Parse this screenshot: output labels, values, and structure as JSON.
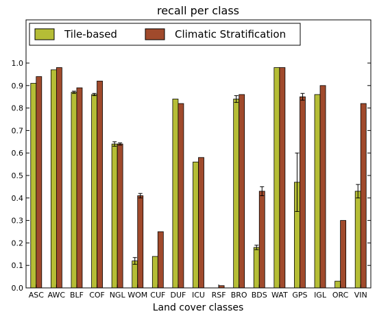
{
  "chart_data": {
    "type": "bar",
    "title": "recall per class",
    "xlabel": "Land cover classes",
    "ylabel": "",
    "ylim": [
      0,
      1.0
    ],
    "yticks": [
      "0.0",
      "0.1",
      "0.2",
      "0.3",
      "0.4",
      "0.5",
      "0.6",
      "0.7",
      "0.8",
      "0.9",
      "1.0"
    ],
    "grid": false,
    "legend_position": "top",
    "categories": [
      "ASC",
      "AWC",
      "BLF",
      "COF",
      "NGL",
      "WOM",
      "CUF",
      "DUF",
      "ICU",
      "RSF",
      "BRO",
      "BDS",
      "WAT",
      "GPS",
      "IGL",
      "ORC",
      "VIN"
    ],
    "series": [
      {
        "name": "Tile-based",
        "color": "#b5bd36",
        "values": [
          0.91,
          0.97,
          0.87,
          0.86,
          0.64,
          0.12,
          0.14,
          0.84,
          0.56,
          0.0,
          0.84,
          0.18,
          0.98,
          0.47,
          0.86,
          0.03,
          0.43
        ],
        "errors": [
          0.0,
          0.0,
          0.005,
          0.005,
          0.01,
          0.015,
          0.0,
          0.0,
          0.0,
          0.0,
          0.015,
          0.01,
          0.0,
          0.13,
          0.0,
          0.0,
          0.03
        ]
      },
      {
        "name": "Climatic Stratification",
        "color": "#a04a2c",
        "values": [
          0.94,
          0.98,
          0.89,
          0.92,
          0.64,
          0.41,
          0.25,
          0.82,
          0.58,
          0.01,
          0.86,
          0.43,
          0.98,
          0.85,
          0.9,
          0.3,
          0.82
        ],
        "errors": [
          0.0,
          0.0,
          0.0,
          0.0,
          0.005,
          0.01,
          0.0,
          0.0,
          0.0,
          0.0,
          0.0,
          0.02,
          0.0,
          0.015,
          0.0,
          0.0,
          0.0
        ]
      }
    ]
  }
}
